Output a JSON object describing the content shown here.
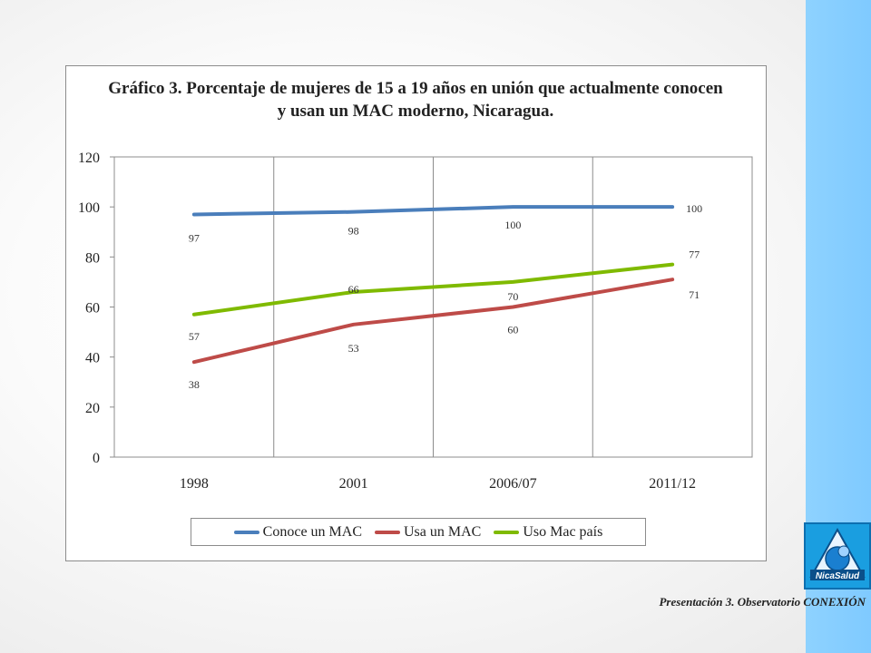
{
  "chart_data": {
    "type": "line",
    "title": "Gráfico 3. Porcentaje de mujeres de 15 a 19 años en unión que actualmente conocen y usan un MAC moderno, Nicaragua.",
    "categories": [
      "1998",
      "2001",
      "2006/07",
      "2011/12"
    ],
    "series": [
      {
        "name": "Conoce un MAC",
        "values": [
          97,
          98,
          100,
          100
        ],
        "color": "#4a7ebb",
        "labels": [
          "97",
          "98",
          "100",
          "100"
        ]
      },
      {
        "name": "Usa un MAC",
        "values": [
          38,
          53,
          60,
          71
        ],
        "color": "#be4b48",
        "labels": [
          "38",
          "53",
          "60",
          "71"
        ]
      },
      {
        "name": "Uso Mac país",
        "values": [
          57,
          66,
          70,
          77
        ],
        "color": "#7fba00",
        "labels": [
          "57",
          "66",
          "70",
          "77"
        ]
      }
    ],
    "ylim": [
      0,
      120
    ],
    "yticks": [
      "0",
      "20",
      "40",
      "60",
      "80",
      "100",
      "120"
    ],
    "xlabel": "",
    "ylabel": "",
    "grid": "vertical",
    "legend": "bottom"
  },
  "footer": {
    "text": "Presentación 3. Observatorio CONEXIÓN"
  },
  "logo": {
    "text": "NicaSalud",
    "icon": "nicasalud-logo"
  }
}
